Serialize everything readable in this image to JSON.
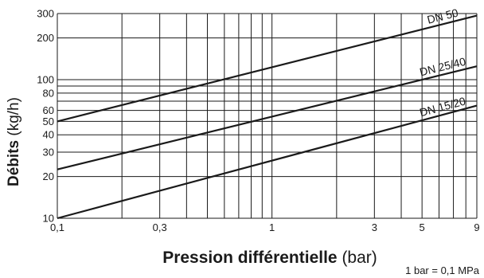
{
  "chart_data": {
    "type": "line",
    "x_scale": "log",
    "y_scale": "log",
    "xlim": [
      0.1,
      9
    ],
    "ylim": [
      10,
      300
    ],
    "x_grid": [
      0.1,
      0.2,
      0.3,
      0.4,
      0.5,
      0.6,
      0.7,
      0.8,
      0.9,
      1,
      2,
      3,
      4,
      5,
      6,
      7,
      8,
      9
    ],
    "y_grid": [
      10,
      20,
      30,
      40,
      50,
      60,
      70,
      80,
      90,
      100,
      200,
      300
    ],
    "x_ticks": [
      {
        "value": 0.1,
        "label": "0,1"
      },
      {
        "value": 0.3,
        "label": "0,3"
      },
      {
        "value": 1,
        "label": "1"
      },
      {
        "value": 3,
        "label": "3"
      },
      {
        "value": 5,
        "label": "5"
      },
      {
        "value": 9,
        "label": "9"
      }
    ],
    "y_ticks": [
      {
        "value": 10,
        "label": "10"
      },
      {
        "value": 20,
        "label": "20"
      },
      {
        "value": 30,
        "label": "30"
      },
      {
        "value": 40,
        "label": "40"
      },
      {
        "value": 50,
        "label": "50"
      },
      {
        "value": 60,
        "label": "60"
      },
      {
        "value": 80,
        "label": "80"
      },
      {
        "value": 100,
        "label": "100"
      },
      {
        "value": 200,
        "label": "200"
      },
      {
        "value": 300,
        "label": "300"
      }
    ],
    "series": [
      {
        "name": "DN 50",
        "x": [
          0.1,
          9
        ],
        "y": [
          50,
          290
        ]
      },
      {
        "name": "DN 25/40",
        "x": [
          0.1,
          9
        ],
        "y": [
          22.5,
          125
        ]
      },
      {
        "name": "DN 15/20",
        "x": [
          0.1,
          9
        ],
        "y": [
          10,
          65
        ]
      }
    ],
    "ylabel_bold": "Débits",
    "ylabel_unit": " (kg/h)",
    "xlabel_bold": "Pression différentielle",
    "xlabel_unit": " (bar)",
    "note": "1 bar = 0,1 MPa",
    "grid": true,
    "line_color": "#1a1a1a",
    "grid_color": "#1a1a1a"
  }
}
